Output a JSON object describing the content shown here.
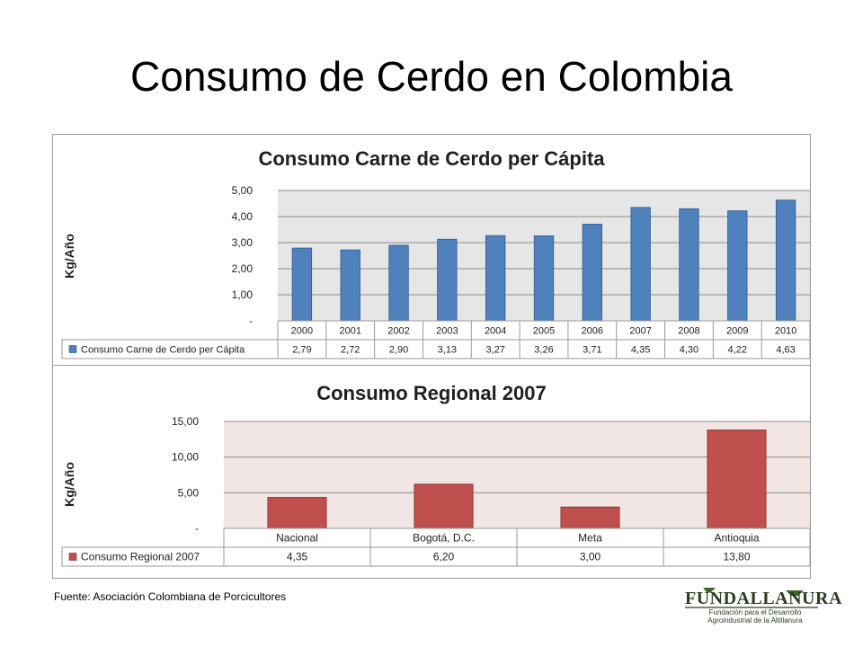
{
  "slide": {
    "title": "Consumo de Cerdo en Colombia",
    "source": "Fuente: Asociación Colombiana de Porcicultores",
    "logo": {
      "word": "FUNDALLANURA",
      "sub_line1": "Fundación para el Desarrollo",
      "sub_line2": "Agroindustrial de la Altillanura"
    }
  },
  "colors": {
    "series1": "#4f81bd",
    "series2": "#c0504d",
    "plot1_bg": "#e6e6e6",
    "plot2_bg": "#f2e6e4"
  },
  "chart_data": [
    {
      "type": "bar",
      "title": "Consumo Carne de Cerdo per Cápita",
      "ylabel": "Kg/Año",
      "ylim": [
        0,
        5
      ],
      "yticks": [
        "-",
        "1,00",
        "2,00",
        "3,00",
        "4,00",
        "5,00"
      ],
      "grid": true,
      "legend": "data-table",
      "categories": [
        "2000",
        "2001",
        "2002",
        "2003",
        "2004",
        "2005",
        "2006",
        "2007",
        "2008",
        "2009",
        "2010"
      ],
      "series": [
        {
          "name": "Consumo Carne de Cerdo per Cápita",
          "values": [
            2.79,
            2.72,
            2.9,
            3.13,
            3.27,
            3.26,
            3.71,
            4.35,
            4.3,
            4.22,
            4.63
          ],
          "labels": [
            "2,79",
            "2,72",
            "2,90",
            "3,13",
            "3,27",
            "3,26",
            "3,71",
            "4,35",
            "4,30",
            "4,22",
            "4,63"
          ]
        }
      ]
    },
    {
      "type": "bar",
      "title": "Consumo Regional 2007",
      "ylabel": "Kg/Año",
      "ylim": [
        0,
        15
      ],
      "yticks": [
        "-",
        "5,00",
        "10,00",
        "15,00"
      ],
      "grid": true,
      "legend": "data-table",
      "categories": [
        "Nacional",
        "Bogotá, D.C.",
        "Meta",
        "Antioquia"
      ],
      "series": [
        {
          "name": "Consumo Regional 2007",
          "values": [
            4.35,
            6.2,
            3.0,
            13.8
          ],
          "labels": [
            "4,35",
            "6,20",
            "3,00",
            "13,80"
          ]
        }
      ]
    }
  ]
}
